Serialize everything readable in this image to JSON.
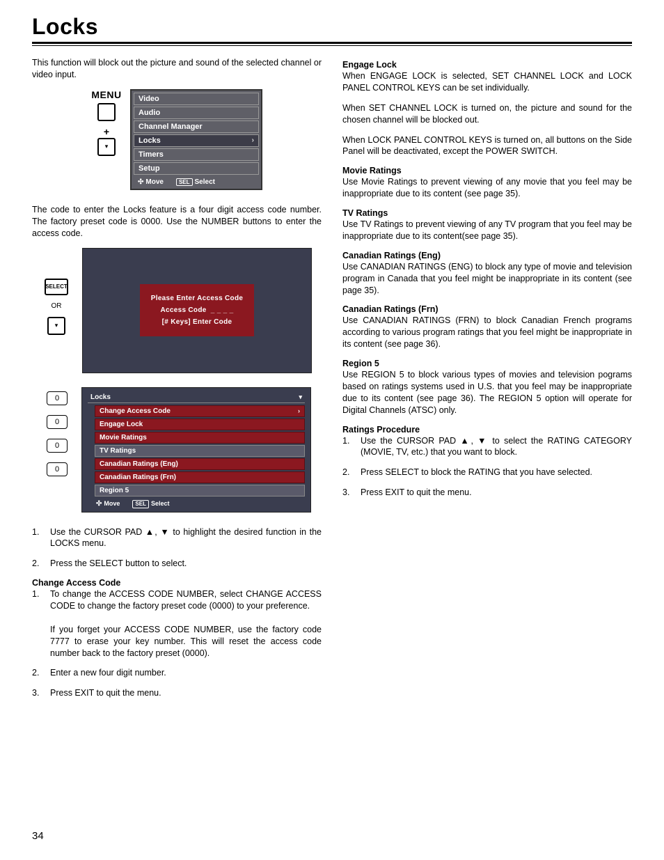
{
  "page": {
    "title": "Locks",
    "number": "34"
  },
  "intro": "This function will block out the picture and sound of the selected channel or video input.",
  "fig1": {
    "menuLabel": "MENU",
    "items": [
      "Video",
      "Audio",
      "Channel Manager",
      "Locks",
      "Timers",
      "Setup"
    ],
    "selectedIndex": 3,
    "footerMove": "Move",
    "footerSelect": "Select",
    "selPill": "SEL"
  },
  "midPara": "The code to enter the Locks feature is a four digit access code number. The factory preset code is 0000. Use the NUMBER buttons to enter the access code.",
  "fig2": {
    "selectLabel": "SELECT",
    "orLabel": "OR",
    "line1": "Please Enter Access Code",
    "line2a": "Access Code",
    "line2b": "_ _ _ _",
    "line3": "[# Keys] Enter Code"
  },
  "fig3": {
    "zero": "0",
    "title": "Locks",
    "items": [
      "Change Access Code",
      "Engage Lock",
      "Movie Ratings",
      "TV Ratings",
      "Canadian Ratings (Eng)",
      "Canadian Ratings (Frn)",
      "Region 5"
    ],
    "footerMove": "Move",
    "footerSelect": "Select",
    "selPill": "SEL"
  },
  "leftSteps": {
    "s1": "Use the CURSOR PAD  ▲, ▼ to highlight the desired function in the LOCKS menu.",
    "s2": "Press the SELECT button to select."
  },
  "changeCode": {
    "h": "Change Access Code",
    "s1": "To change the ACCESS CODE NUMBER, select CHANGE ACCESS CODE to change the factory preset code (0000) to your preference.",
    "s1b": "If you forget your ACCESS CODE NUMBER, use the factory code 7777 to erase your key number. This will reset the access code number back to the factory preset (0000).",
    "s2": "Enter a new four digit number.",
    "s3": "Press EXIT to quit the menu."
  },
  "engage": {
    "h": "Engage Lock",
    "p1": "When ENGAGE LOCK is selected, SET CHANNEL LOCK and LOCK PANEL CONTROL KEYS can be set individually.",
    "p2": "When SET CHANNEL LOCK is turned on, the picture and sound for the chosen channel will be blocked out.",
    "p3": "When LOCK PANEL CONTROL KEYS is turned on, all buttons on the Side Panel will be deactivated, except the POWER SWITCH."
  },
  "movie": {
    "h": "Movie Ratings",
    "p": "Use Movie Ratings to prevent viewing of any movie that you feel may be inappropriate due to its content (see page 35)."
  },
  "tv": {
    "h": "TV Ratings",
    "p": "Use TV Ratings to prevent viewing of any TV program that you feel may be inappropriate due to its content(see page 35)."
  },
  "canEng": {
    "h": "Canadian Ratings (Eng)",
    "p": "Use CANADIAN RATINGS (ENG) to block any type of movie and television program in Canada that you feel might be inappropriate in its content (see page 35)."
  },
  "canFrn": {
    "h": "Canadian Ratings (Frn)",
    "p": "Use CANADIAN RATINGS (FRN) to block Canadian French programs according to various program ratings that you feel might be inappropriate in its content (see page 36)."
  },
  "region5": {
    "h": "Region 5",
    "p": "Use REGION 5 to block various types of movies and television pograms based on ratings systems used in U.S. that you feel may be inappropriate due to its content (see page 36). The REGION 5 option will operate for Digital Channels (ATSC) only."
  },
  "proc": {
    "h": "Ratings Procedure",
    "s1": "Use the CURSOR PAD ▲, ▼ to select the RATING CATEGORY (MOVIE, TV, etc.) that you want to block.",
    "s2": "Press SELECT to block the RATING that you have selected.",
    "s3": "Press EXIT to quit the menu."
  }
}
